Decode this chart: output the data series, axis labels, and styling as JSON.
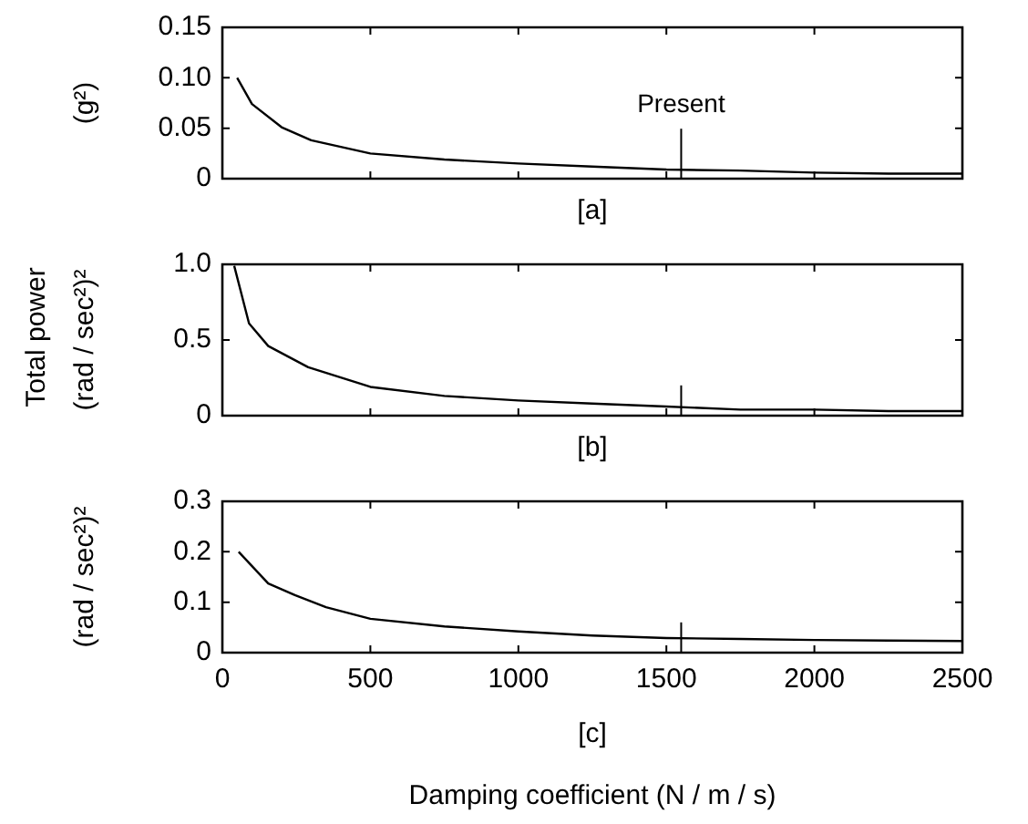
{
  "chart_data": [
    {
      "type": "line",
      "xlabel": "[a]",
      "ylabel": "(g²)",
      "x": [
        50,
        100,
        200,
        300,
        500,
        750,
        1000,
        1250,
        1500,
        1750,
        2000,
        2250,
        2500
      ],
      "series": [
        {
          "color": "#000000",
          "values": [
            0.1,
            0.074,
            0.051,
            0.038,
            0.025,
            0.019,
            0.015,
            0.012,
            0.009,
            0.008,
            0.006,
            0.005,
            0.005
          ]
        }
      ],
      "xlim": [
        0,
        2500
      ],
      "xticks": [
        0,
        500,
        1000,
        1500,
        2000,
        2500
      ],
      "ylim": [
        0,
        0.15
      ],
      "yticks": [
        0,
        0.05,
        {
          "value": 0.1,
          "label": "0.10"
        },
        0.15
      ],
      "ref_lines": [
        {
          "axis": "x",
          "value": 1550,
          "label": "Present"
        }
      ],
      "grid": false,
      "legend": false,
      "tick_labels": "y",
      "line_style": "solid",
      "marker": "none"
    },
    {
      "type": "line",
      "xlabel": "[b]",
      "ylabel": "(rad / sec²)²",
      "annotations": [
        "Total power"
      ],
      "x": [
        40,
        90,
        155,
        290,
        500,
        750,
        1000,
        1250,
        1500,
        1750,
        2000,
        2250,
        2500
      ],
      "series": [
        {
          "color": "#000000",
          "values": [
            0.99,
            0.61,
            0.46,
            0.32,
            0.19,
            0.13,
            0.1,
            0.08,
            0.06,
            0.04,
            0.04,
            0.03,
            0.03
          ]
        }
      ],
      "xlim": [
        0,
        2500
      ],
      "xticks": [
        0,
        500,
        1000,
        1500,
        2000,
        2500
      ],
      "ylim": [
        0,
        1
      ],
      "yticks": [
        0,
        0.5,
        {
          "value": 1,
          "label": "1.0"
        }
      ],
      "ref_lines": [
        {
          "axis": "x",
          "value": 1550
        }
      ],
      "grid": false,
      "legend": false,
      "tick_labels": "y",
      "line_style": "solid",
      "marker": "none"
    },
    {
      "type": "line",
      "xlabel": "[c]",
      "ylabel": "(rad / sec²)²",
      "annotations": [
        "Damping coefficient (N / m / s)"
      ],
      "x": [
        55,
        155,
        245,
        350,
        500,
        750,
        1000,
        1250,
        1500,
        1750,
        2000,
        2250,
        2500
      ],
      "series": [
        {
          "color": "#000000",
          "values": [
            0.2,
            0.137,
            0.114,
            0.09,
            0.067,
            0.052,
            0.042,
            0.034,
            0.029,
            0.027,
            0.025,
            0.024,
            0.023
          ]
        }
      ],
      "xlim": [
        0,
        2500
      ],
      "xticks": [
        0,
        500,
        1000,
        1500,
        2000,
        2500
      ],
      "ylim": [
        0,
        0.3
      ],
      "yticks": [
        0,
        0.1,
        0.2,
        0.3
      ],
      "ref_lines": [
        {
          "axis": "x",
          "value": 1550
        }
      ],
      "grid": false,
      "legend": false,
      "line_style": "solid",
      "marker": "none"
    }
  ]
}
